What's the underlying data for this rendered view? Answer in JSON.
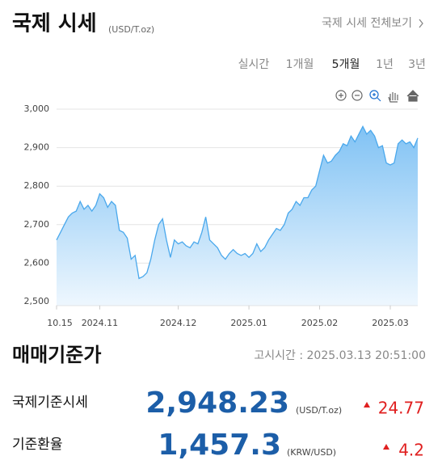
{
  "header": {
    "title": "국제 시세",
    "unit": "(USD/T.oz)",
    "link": "국제 시세 전체보기"
  },
  "tabs": [
    {
      "label": "실시간"
    },
    {
      "label": "1개월"
    },
    {
      "label": "5개월",
      "selected": true
    },
    {
      "label": "1년"
    },
    {
      "label": "3년"
    }
  ],
  "chart_data": {
    "type": "area",
    "color": "#4aa8ec",
    "grid": true,
    "categories": [
      "10.15",
      null,
      null,
      null,
      null,
      null,
      null,
      null,
      null,
      null,
      null,
      "2024.11",
      null,
      null,
      null,
      null,
      null,
      null,
      null,
      null,
      null,
      null,
      null,
      null,
      null,
      null,
      null,
      null,
      null,
      null,
      null,
      "2024.12",
      null,
      null,
      null,
      null,
      null,
      null,
      null,
      null,
      null,
      null,
      null,
      null,
      null,
      null,
      null,
      null,
      null,
      "2025.01",
      null,
      null,
      null,
      null,
      null,
      null,
      null,
      null,
      null,
      null,
      null,
      null,
      null,
      null,
      null,
      null,
      null,
      "2025.02",
      null,
      null,
      null,
      null,
      null,
      null,
      null,
      null,
      null,
      null,
      null,
      null,
      null,
      null,
      null,
      null,
      null,
      "2025.03",
      null,
      null,
      null,
      null,
      null,
      null,
      null
    ],
    "values": [
      2660,
      2680,
      2700,
      2720,
      2730,
      2735,
      2760,
      2740,
      2750,
      2735,
      2750,
      2780,
      2770,
      2745,
      2760,
      2750,
      2685,
      2680,
      2665,
      2610,
      2620,
      2560,
      2565,
      2575,
      2610,
      2660,
      2700,
      2715,
      2660,
      2615,
      2660,
      2650,
      2655,
      2645,
      2640,
      2655,
      2650,
      2680,
      2720,
      2660,
      2650,
      2640,
      2620,
      2610,
      2625,
      2635,
      2625,
      2620,
      2625,
      2615,
      2625,
      2650,
      2630,
      2640,
      2660,
      2675,
      2690,
      2685,
      2700,
      2730,
      2740,
      2760,
      2750,
      2770,
      2770,
      2790,
      2800,
      2840,
      2880,
      2860,
      2865,
      2880,
      2890,
      2910,
      2905,
      2930,
      2915,
      2935,
      2955,
      2935,
      2945,
      2930,
      2900,
      2905,
      2860,
      2855,
      2860,
      2910,
      2920,
      2910,
      2915,
      2900,
      2925
    ],
    "ylim": [
      2490,
      3010
    ],
    "yticks": [
      {
        "value": 2500,
        "label": "2,500"
      },
      {
        "value": 2600,
        "label": "2,600"
      },
      {
        "value": 2700,
        "label": "2,700"
      },
      {
        "value": 2800,
        "label": "2,800"
      },
      {
        "value": 2900,
        "label": "2,900"
      },
      {
        "value": 3000,
        "label": "3,000"
      }
    ]
  },
  "base": {
    "title": "매매기준가",
    "time": "고시시간 : 2025.03.13 20:51:00",
    "rows": [
      {
        "label": "국제기준시세",
        "value": "2,948.23",
        "unit": "(USD/T.oz)",
        "change": "24.77"
      },
      {
        "label": "기준환율",
        "value": "1,457.3",
        "unit": "(KRW/USD)",
        "change": "4.2"
      }
    ]
  }
}
